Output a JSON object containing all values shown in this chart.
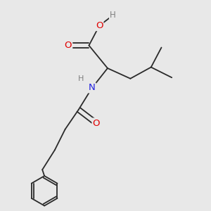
{
  "bg_color": "#e8e8e8",
  "bond_color": "#2a2a2a",
  "bond_width": 1.3,
  "atom_colors": {
    "O": "#e00000",
    "N": "#2020e0",
    "H": "#808080",
    "C": "#2a2a2a"
  },
  "font_size": 8.5,
  "figsize": [
    3.0,
    3.0
  ],
  "dpi": 100,
  "xlim": [
    0,
    10
  ],
  "ylim": [
    0,
    10
  ]
}
